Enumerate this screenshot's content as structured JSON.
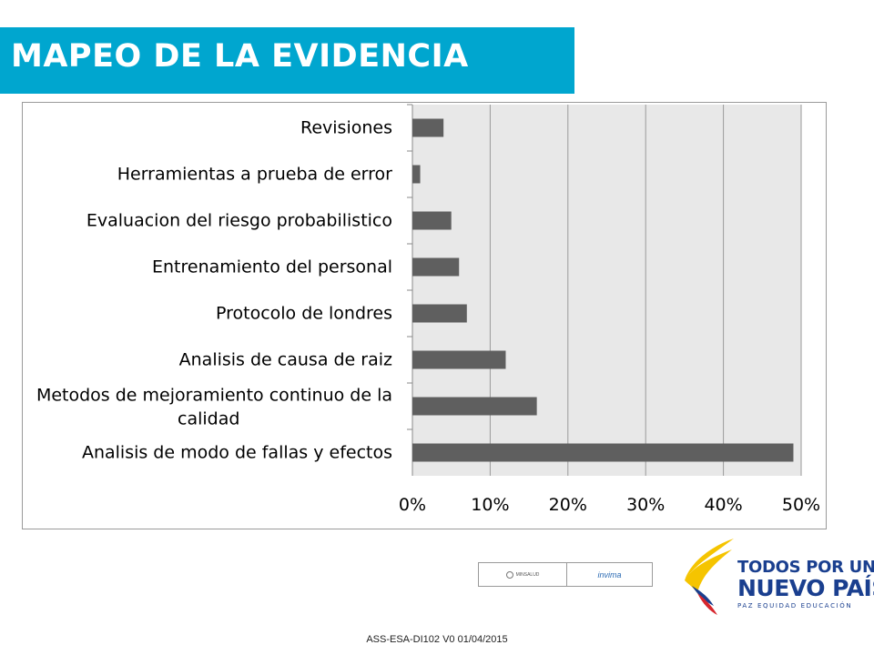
{
  "header": {
    "title": "MAPEO DE LA EVIDENCIA"
  },
  "colors": {
    "title_bar": "#00a6cf",
    "bar": "#5f5f5f",
    "plot_bg": "#e8e8e8",
    "grid": "#9a9a9a"
  },
  "chart_data": {
    "type": "bar",
    "orientation": "horizontal",
    "categories": [
      "Revisiones",
      "Herramientas a prueba de error",
      "Evaluacion del riesgo probabilistico",
      "Entrenamiento del personal",
      "Protocolo de londres",
      "Analisis de causa de raiz",
      "Metodos de mejoramiento continuo de la calidad",
      "Analisis de modo de fallas y efectos"
    ],
    "values": [
      4,
      1,
      5,
      6,
      7,
      12,
      16,
      49
    ],
    "xlim": [
      0,
      50
    ],
    "x_ticks": [
      0,
      10,
      20,
      30,
      40,
      50
    ],
    "x_tick_labels": [
      "0%",
      "10%",
      "20%",
      "30%",
      "40%",
      "50%"
    ],
    "value_unit": "%",
    "grid": true,
    "legend": "none",
    "title": "",
    "xlabel": "",
    "ylabel": ""
  },
  "logos": {
    "left_caption": "MINSALUD",
    "right_caption": "invima"
  },
  "gov_logo": {
    "line1": "TODOS POR UN",
    "line2": "NUEVO PAÍS",
    "line3": "PAZ  EQUIDAD  EDUCACIÓN"
  },
  "footer": {
    "text": "ASS-ESA-DI102   V0   01/04/2015"
  }
}
